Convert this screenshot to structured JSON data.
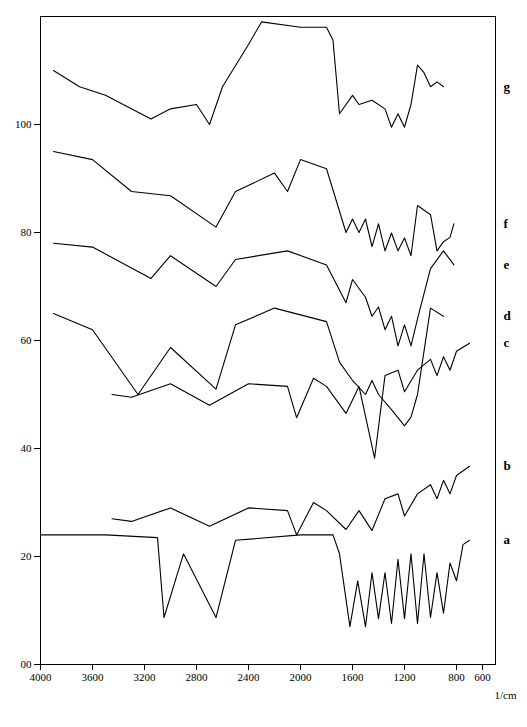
{
  "chart_data": {
    "type": "line",
    "x_label": "1/cm",
    "xlim": [
      4000,
      500
    ],
    "xticks": [
      4000,
      3600,
      3200,
      2800,
      2400,
      2000,
      1600,
      1200,
      800,
      600
    ],
    "ylim": [
      0,
      120
    ],
    "yticks": [
      {
        "value": 0,
        "label": "00"
      },
      20,
      40,
      60,
      80,
      100
    ],
    "grid": false,
    "series": [
      {
        "name": "a",
        "color": "#000000",
        "x": [
          4000,
          3500,
          3100,
          3050,
          2900,
          2650,
          2500,
          2000,
          1750,
          1700,
          1620,
          1560,
          1500,
          1450,
          1400,
          1350,
          1300,
          1250,
          1200,
          1150,
          1100,
          1050,
          1000,
          950,
          900,
          850,
          800,
          750,
          700
        ],
        "values": [
          24,
          24,
          23.5,
          8.7,
          20.5,
          8.7,
          23,
          24,
          24,
          20.5,
          7,
          15.5,
          7,
          17,
          8.5,
          17,
          7.6,
          19.5,
          8.5,
          20.5,
          7.6,
          20.5,
          8.7,
          17,
          9.5,
          18.8,
          15.5,
          22.2,
          23
        ]
      },
      {
        "name": "b",
        "color": "#000000",
        "x": [
          3450,
          3300,
          3000,
          2700,
          2400,
          2100,
          2030,
          1900,
          1800,
          1650,
          1550,
          1450,
          1350,
          1250,
          1200,
          1100,
          1000,
          950,
          900,
          850,
          800,
          700
        ],
        "values": [
          27,
          26.5,
          29,
          25.6,
          29,
          28.5,
          24,
          30,
          28.5,
          25,
          28.5,
          24.8,
          30.7,
          31.6,
          27.5,
          31.6,
          33.3,
          30.7,
          34.1,
          31.6,
          35,
          36.7
        ]
      },
      {
        "name": "c",
        "color": "#000000",
        "x": [
          3450,
          3300,
          3000,
          2700,
          2400,
          2100,
          2030,
          1900,
          1800,
          1650,
          1550,
          1430,
          1350,
          1250,
          1200,
          1100,
          1000,
          950,
          900,
          850,
          800,
          700
        ],
        "values": [
          50,
          49.5,
          52,
          48,
          52,
          51.5,
          45.7,
          53,
          51.5,
          46.5,
          51.5,
          38.2,
          53.5,
          54.5,
          50.5,
          54.5,
          56.5,
          53.5,
          57,
          54.5,
          58,
          59.5
        ]
      },
      {
        "name": "d",
        "color": "#000000",
        "x": [
          3900,
          3600,
          3250,
          3000,
          2650,
          2500,
          2200,
          1800,
          1700,
          1600,
          1500,
          1450,
          1400,
          1300,
          1200,
          1150,
          1100,
          1000,
          900
        ],
        "values": [
          65,
          62,
          50,
          58.7,
          51,
          62.9,
          66,
          63.5,
          56,
          52.6,
          50,
          52.6,
          50,
          47.2,
          44.2,
          45.8,
          50,
          66,
          64.5
        ]
      },
      {
        "name": "e",
        "color": "#000000",
        "x": [
          3900,
          3600,
          3150,
          3000,
          2650,
          2500,
          2100,
          1800,
          1650,
          1600,
          1500,
          1450,
          1400,
          1350,
          1300,
          1250,
          1200,
          1150,
          1100,
          1000,
          900,
          820
        ],
        "values": [
          78,
          77.3,
          71.5,
          75.7,
          70,
          75,
          76.6,
          74,
          67,
          71.3,
          68,
          64.5,
          66.2,
          62,
          64.5,
          59,
          62.9,
          59,
          64,
          73.3,
          76.6,
          74
        ]
      },
      {
        "name": "f",
        "color": "#000000",
        "x": [
          3900,
          3600,
          3300,
          3000,
          2650,
          2500,
          2200,
          2100,
          2000,
          1800,
          1650,
          1600,
          1550,
          1500,
          1450,
          1400,
          1350,
          1300,
          1250,
          1200,
          1150,
          1100,
          1000,
          950,
          900,
          850,
          820
        ],
        "values": [
          95,
          93.5,
          87.6,
          86.8,
          81,
          87.6,
          91,
          87.6,
          93.5,
          91.8,
          80,
          82.5,
          80,
          82.5,
          77.4,
          81.6,
          76.6,
          79.9,
          76.6,
          79,
          75.7,
          85,
          83.3,
          76.6,
          78.3,
          79.1,
          81.6
        ]
      },
      {
        "name": "g",
        "color": "#000000",
        "x": [
          3900,
          3700,
          3500,
          3150,
          3000,
          2800,
          2700,
          2600,
          2400,
          2300,
          2000,
          1800,
          1750,
          1700,
          1600,
          1550,
          1450,
          1350,
          1300,
          1250,
          1200,
          1150,
          1100,
          1050,
          1000,
          950,
          900
        ],
        "values": [
          110,
          107,
          105.4,
          101,
          102.9,
          103.7,
          100,
          107,
          114.8,
          119,
          118,
          118,
          115.6,
          102,
          105.4,
          103.7,
          104.5,
          102.9,
          99.5,
          102,
          99.5,
          103.7,
          111,
          109.6,
          107,
          107.9,
          107
        ]
      }
    ]
  }
}
